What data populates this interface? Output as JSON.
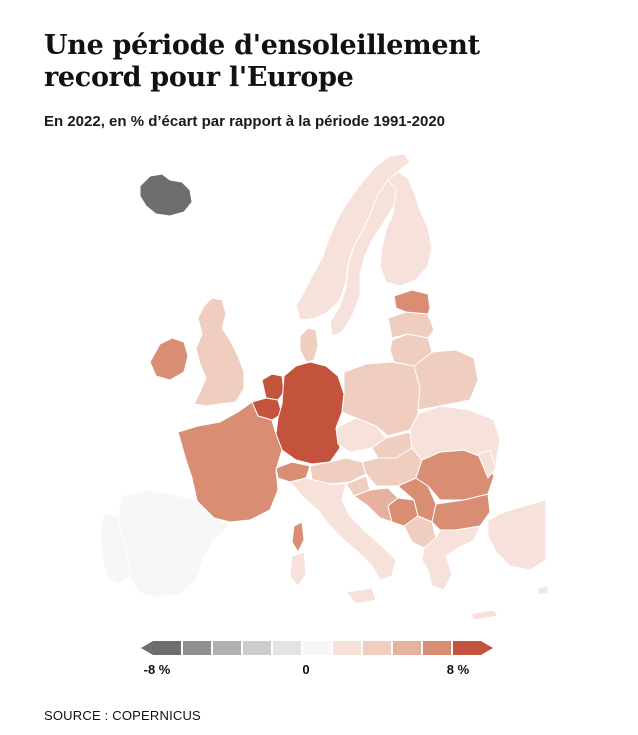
{
  "header": {
    "title_line1": "Une période d'ensoleillement",
    "title_line2": "record pour l'Europe",
    "subtitle": "En 2022, en % d’écart par rapport à la période 1991-2020"
  },
  "legend": {
    "min_label": "-8 %",
    "mid_label": "0",
    "max_label": "8 %",
    "colors": [
      "#6e6e6e",
      "#8f8f8f",
      "#b0b0b0",
      "#cccccc",
      "#e3e3e3",
      "#f7f7f7",
      "#f6e2da",
      "#efcdbf",
      "#e6b19d",
      "#d98d73",
      "#c4533d"
    ]
  },
  "footer": {
    "source": "SOURCE : COPERNICUS"
  }
}
